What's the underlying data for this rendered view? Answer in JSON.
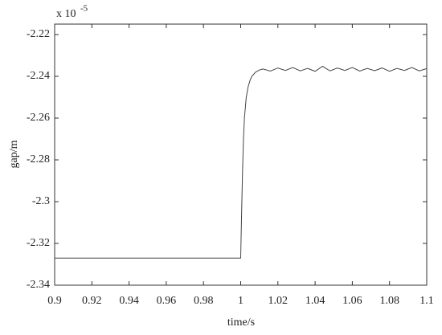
{
  "chart_data": {
    "type": "line",
    "x_label": "time/s",
    "y_label": "gap/m",
    "y_multiplier": "x 10",
    "y_multiplier_exponent": "-5",
    "x": [
      0.9,
      0.92,
      0.94,
      0.96,
      0.98,
      0.999,
      1.0,
      1.0005,
      1.001,
      1.0015,
      1.002,
      1.003,
      1.004,
      1.005,
      1.006,
      1.008,
      1.01,
      1.012,
      1.016,
      1.02,
      1.024,
      1.028,
      1.032,
      1.036,
      1.04,
      1.044,
      1.048,
      1.052,
      1.056,
      1.06,
      1.064,
      1.068,
      1.072,
      1.076,
      1.08,
      1.084,
      1.088,
      1.092,
      1.096,
      1.1
    ],
    "series": [
      {
        "color": "#444444",
        "values": [
          -2.327,
          -2.327,
          -2.327,
          -2.327,
          -2.327,
          -2.327,
          -2.327,
          -2.305,
          -2.285,
          -2.27,
          -2.26,
          -2.25,
          -2.245,
          -2.242,
          -2.24,
          -2.238,
          -2.237,
          -2.2365,
          -2.2375,
          -2.236,
          -2.2372,
          -2.2358,
          -2.2374,
          -2.2362,
          -2.2376,
          -2.2352,
          -2.2374,
          -2.236,
          -2.2372,
          -2.2358,
          -2.2375,
          -2.2362,
          -2.2373,
          -2.236,
          -2.2376,
          -2.2362,
          -2.2372,
          -2.2358,
          -2.2374,
          -2.2363
        ]
      }
    ],
    "xlim": [
      0.9,
      1.1
    ],
    "ylim": [
      -2.34,
      -2.215
    ],
    "xticks": [
      0.9,
      0.92,
      0.94,
      0.96,
      0.98,
      1,
      1.02,
      1.04,
      1.06,
      1.08,
      1.1
    ],
    "yticks": [
      -2.34,
      -2.32,
      -2.3,
      -2.28,
      -2.26,
      -2.24,
      -2.22
    ]
  }
}
